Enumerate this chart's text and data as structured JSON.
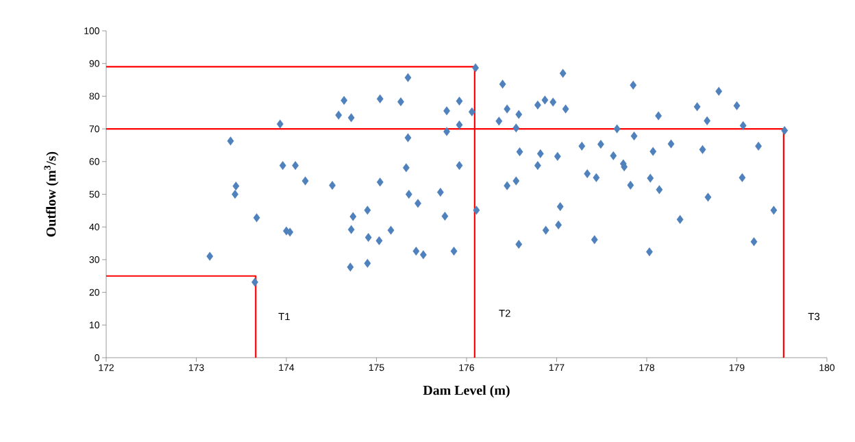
{
  "chart_data": {
    "type": "scatter",
    "xlabel": "Dam Level (m)",
    "ylabel": "Outflow (m$^{3}$/s)",
    "xlim": [
      172,
      180
    ],
    "xticks": [
      172,
      173,
      174,
      175,
      176,
      177,
      178,
      179,
      180
    ],
    "ylim": [
      0,
      100
    ],
    "yticks": [
      0,
      10,
      20,
      30,
      40,
      50,
      60,
      70,
      80,
      90,
      100
    ],
    "marker": "diamond",
    "series": [
      {
        "color": "#4f81bd",
        "x": [
          173.15,
          173.38,
          173.44,
          173.43,
          173.67,
          173.65,
          173.93,
          173.96,
          174.0,
          174.04,
          174.1,
          174.21,
          174.51,
          174.58,
          174.64,
          174.72,
          174.71,
          174.74,
          174.72,
          174.9,
          174.91,
          174.9,
          175.04,
          175.04,
          175.03,
          175.16,
          175.27,
          175.33,
          175.35,
          175.35,
          175.36,
          175.44,
          175.46,
          175.52,
          175.71,
          175.76,
          175.78,
          175.78,
          175.86,
          175.92,
          175.92,
          175.92,
          176.06,
          176.1,
          176.11,
          176.36,
          176.4,
          176.45,
          176.45,
          176.55,
          176.55,
          176.58,
          176.59,
          176.58,
          176.79,
          176.79,
          176.82,
          176.87,
          176.88,
          176.96,
          177.01,
          177.02,
          177.04,
          177.07,
          177.1,
          177.28,
          177.34,
          177.42,
          177.44,
          177.49,
          177.63,
          177.67,
          177.74,
          177.75,
          177.82,
          177.85,
          177.86,
          178.03,
          178.04,
          178.07,
          178.13,
          178.14,
          178.27,
          178.37,
          178.56,
          178.62,
          178.67,
          178.68,
          178.8,
          179.0,
          179.06,
          179.07,
          179.19,
          179.24,
          179.41,
          179.53
        ],
        "values": [
          31.0,
          66.3,
          52.5,
          50.0,
          42.8,
          23.1,
          71.5,
          58.8,
          38.8,
          38.4,
          58.8,
          54.1,
          52.7,
          74.2,
          78.7,
          73.4,
          27.7,
          43.2,
          39.2,
          45.1,
          36.8,
          28.9,
          79.2,
          53.7,
          35.8,
          39.0,
          78.3,
          58.1,
          85.7,
          67.3,
          50.0,
          32.6,
          47.2,
          31.5,
          50.6,
          43.3,
          75.5,
          69.2,
          32.6,
          78.5,
          71.2,
          58.8,
          75.2,
          88.7,
          45.1,
          72.4,
          83.7,
          76.1,
          52.6,
          70.3,
          54.1,
          74.4,
          63.0,
          34.7,
          77.3,
          58.8,
          62.4,
          78.8,
          39.0,
          78.2,
          61.6,
          40.6,
          46.2,
          87.0,
          76.1,
          64.7,
          56.3,
          36.1,
          55.1,
          65.3,
          61.8,
          70.0,
          59.3,
          58.4,
          52.8,
          83.4,
          67.8,
          32.4,
          54.9,
          63.1,
          74.0,
          51.4,
          65.4,
          42.3,
          76.8,
          63.7,
          72.5,
          49.1,
          81.5,
          77.1,
          55.1,
          71.0,
          35.5,
          64.7,
          45.1,
          69.5
        ]
      },
      {
        "type": "line",
        "color": "#ff0000",
        "marker": "none",
        "x": [
          172,
          173.66,
          173.66
        ],
        "values": [
          25,
          25,
          0
        ]
      },
      {
        "type": "line",
        "color": "#ff0000",
        "marker": "none",
        "x": [
          172,
          176.09,
          176.09
        ],
        "values": [
          89,
          89,
          0
        ]
      },
      {
        "type": "line",
        "color": "#ff0000",
        "marker": "none",
        "x": [
          172,
          179.52,
          179.52
        ],
        "values": [
          70,
          70,
          0
        ]
      }
    ],
    "annotations": [
      "T1",
      "T2",
      "T3"
    ]
  }
}
